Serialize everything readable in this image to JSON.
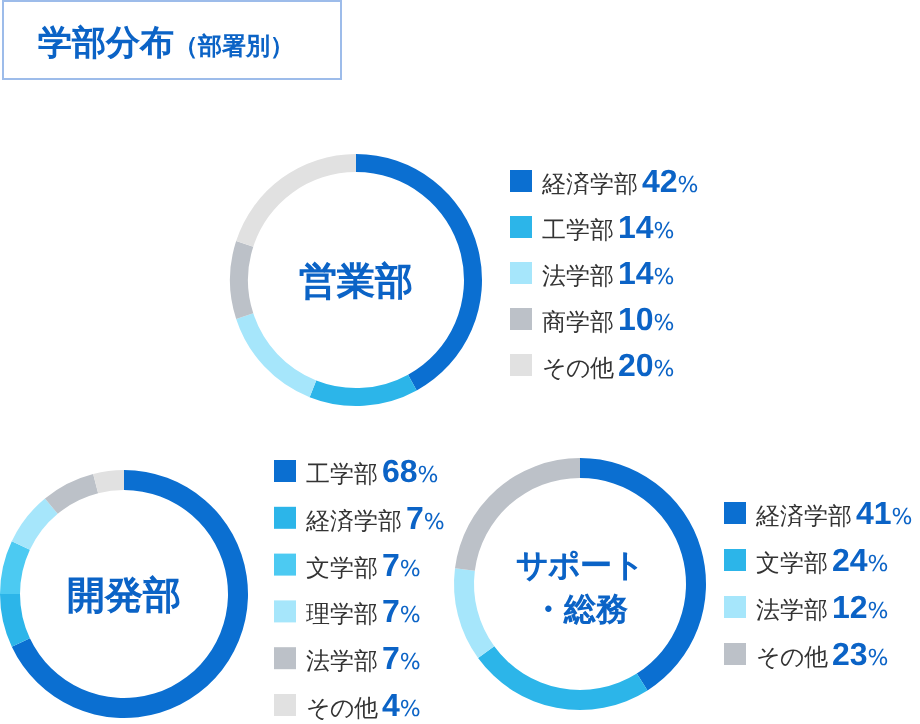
{
  "chart_data": [
    {
      "type": "other",
      "title": "学部分布",
      "subtitle": "（部署別）"
    },
    {
      "type": "donut",
      "title": "営業部",
      "categories": [
        "経済学部",
        "工学部",
        "法学部",
        "商学部",
        "その他"
      ],
      "values": [
        42,
        14,
        14,
        10,
        20
      ],
      "colors": [
        "#0b6fd1",
        "#2cb5e9",
        "#a6e6fb",
        "#bcc1c8",
        "#e1e1e1"
      ],
      "value_labels": [
        "42%",
        "14%",
        "14%",
        "10%",
        "20%"
      ],
      "legend": "right"
    },
    {
      "type": "donut",
      "title": "開発部",
      "categories": [
        "工学部",
        "経済学部",
        "文学部",
        "理学部",
        "法学部",
        "その他"
      ],
      "values": [
        68,
        7,
        7,
        7,
        7,
        4
      ],
      "colors": [
        "#0b6fd1",
        "#2cb5e9",
        "#4ccaf2",
        "#a6e6fb",
        "#bcc1c8",
        "#e1e1e1"
      ],
      "value_labels": [
        "68%",
        "7%",
        "7%",
        "7%",
        "7%",
        "4%"
      ],
      "legend": "right"
    },
    {
      "type": "donut",
      "title": "サポート・総務",
      "categories": [
        "経済学部",
        "文学部",
        "法学部",
        "その他"
      ],
      "values": [
        41,
        24,
        12,
        23
      ],
      "colors": [
        "#0b6fd1",
        "#2cb5e9",
        "#a6e6fb",
        "#bcc1c8"
      ],
      "value_labels": [
        "41%",
        "24%",
        "12%",
        "23%"
      ],
      "legend": "right"
    }
  ]
}
